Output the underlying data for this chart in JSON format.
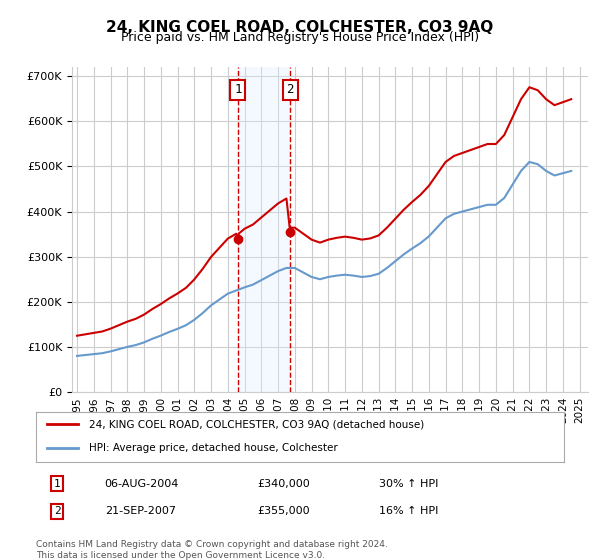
{
  "title": "24, KING COEL ROAD, COLCHESTER, CO3 9AQ",
  "subtitle": "Price paid vs. HM Land Registry's House Price Index (HPI)",
  "footer": "Contains HM Land Registry data © Crown copyright and database right 2024.\nThis data is licensed under the Open Government Licence v3.0.",
  "legend_line1": "24, KING COEL ROAD, COLCHESTER, CO3 9AQ (detached house)",
  "legend_line2": "HPI: Average price, detached house, Colchester",
  "transaction1_label": "1",
  "transaction1_date": "06-AUG-2004",
  "transaction1_price": "£340,000",
  "transaction1_hpi": "30% ↑ HPI",
  "transaction1_year": 2004.6,
  "transaction1_value": 340000,
  "transaction2_label": "2",
  "transaction2_date": "21-SEP-2007",
  "transaction2_price": "£355,000",
  "transaction2_hpi": "16% ↑ HPI",
  "transaction2_year": 2007.72,
  "transaction2_value": 355000,
  "ylim": [
    0,
    720000
  ],
  "xlim_start": 1995,
  "xlim_end": 2025.5,
  "red_color": "#cc0000",
  "blue_color": "#6699cc",
  "shade_color": "#ddeeff",
  "grid_color": "#cccccc",
  "bg_color": "#ffffff"
}
